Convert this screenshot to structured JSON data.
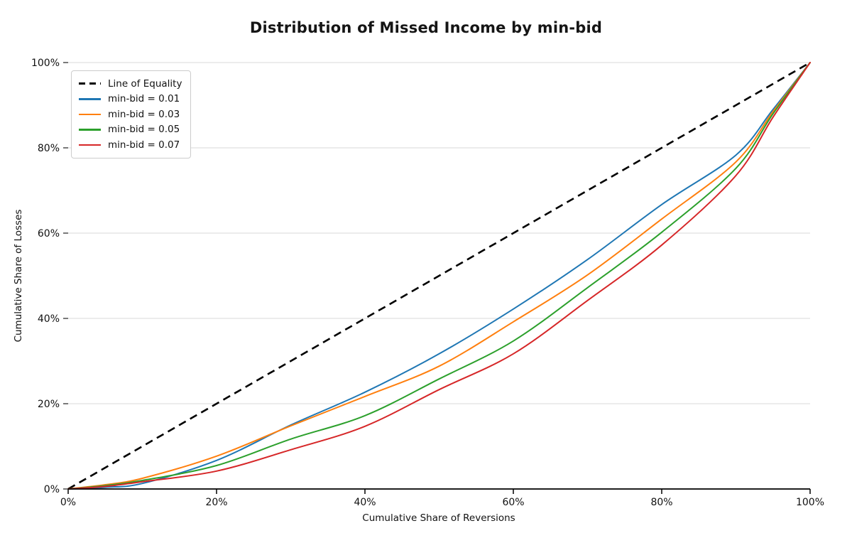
{
  "chart": {
    "title": "Distribution of Missed Income by min-bid",
    "xlabel": "Cumulative Share of Reversions",
    "ylabel": "Cumulative Share of Losses"
  },
  "legend": {
    "items": [
      {
        "label": "Line of Equality",
        "color": "#000000",
        "dashed": true
      },
      {
        "label": "min-bid = 0.01",
        "color": "#1f77b4",
        "dashed": false
      },
      {
        "label": "min-bid = 0.03",
        "color": "#ff7f0e",
        "dashed": false
      },
      {
        "label": "min-bid = 0.05",
        "color": "#2ca02c",
        "dashed": false
      },
      {
        "label": "min-bid = 0.07",
        "color": "#d62728",
        "dashed": false
      }
    ]
  },
  "chart_data": {
    "type": "line",
    "title": "Distribution of Missed Income by min-bid",
    "xlabel": "Cumulative Share of Reversions",
    "ylabel": "Cumulative Share of Losses",
    "xlim": [
      0,
      100
    ],
    "ylim": [
      0,
      100
    ],
    "x_ticks": [
      0,
      20,
      40,
      60,
      80,
      100
    ],
    "y_ticks": [
      0,
      20,
      40,
      60,
      80,
      100
    ],
    "x_tick_labels": [
      "0%",
      "20%",
      "40%",
      "60%",
      "80%",
      "100%"
    ],
    "y_tick_labels": [
      "0%",
      "20%",
      "40%",
      "60%",
      "80%",
      "100%"
    ],
    "grid": "horizontal-only",
    "grid_color": "#e0e0e0",
    "legend_position": "upper-left",
    "x": [
      0,
      5,
      10,
      20,
      30,
      40,
      50,
      60,
      70,
      80,
      90,
      95,
      100
    ],
    "series": [
      {
        "name": "Line of Equality",
        "color": "#000000",
        "style": "dashed",
        "width": 2.6,
        "values": [
          0,
          5,
          10,
          20,
          30,
          40,
          50,
          60,
          70,
          80,
          90,
          95,
          100
        ]
      },
      {
        "name": "min-bid = 0.01",
        "color": "#1f77b4",
        "style": "solid",
        "width": 2,
        "values": [
          0,
          0.4,
          1.3,
          6.7,
          15.0,
          22.7,
          31.7,
          42.2,
          53.8,
          66.7,
          78.3,
          89.0,
          100
        ]
      },
      {
        "name": "min-bid = 0.03",
        "color": "#ff7f0e",
        "style": "solid",
        "width": 2,
        "values": [
          0,
          1.0,
          2.5,
          7.7,
          14.8,
          21.7,
          28.8,
          39.2,
          50.2,
          63.3,
          76.7,
          88.5,
          100
        ]
      },
      {
        "name": "min-bid = 0.05",
        "color": "#2ca02c",
        "style": "solid",
        "width": 2,
        "values": [
          0,
          0.8,
          2.0,
          5.5,
          11.7,
          17.2,
          25.8,
          34.7,
          47.2,
          60.2,
          75.2,
          88.0,
          100
        ]
      },
      {
        "name": "min-bid = 0.07",
        "color": "#d62728",
        "style": "solid",
        "width": 2,
        "values": [
          0,
          0.6,
          1.7,
          4.2,
          9.2,
          14.7,
          23.3,
          31.7,
          44.2,
          57.2,
          73.5,
          87.2,
          100
        ]
      }
    ]
  }
}
